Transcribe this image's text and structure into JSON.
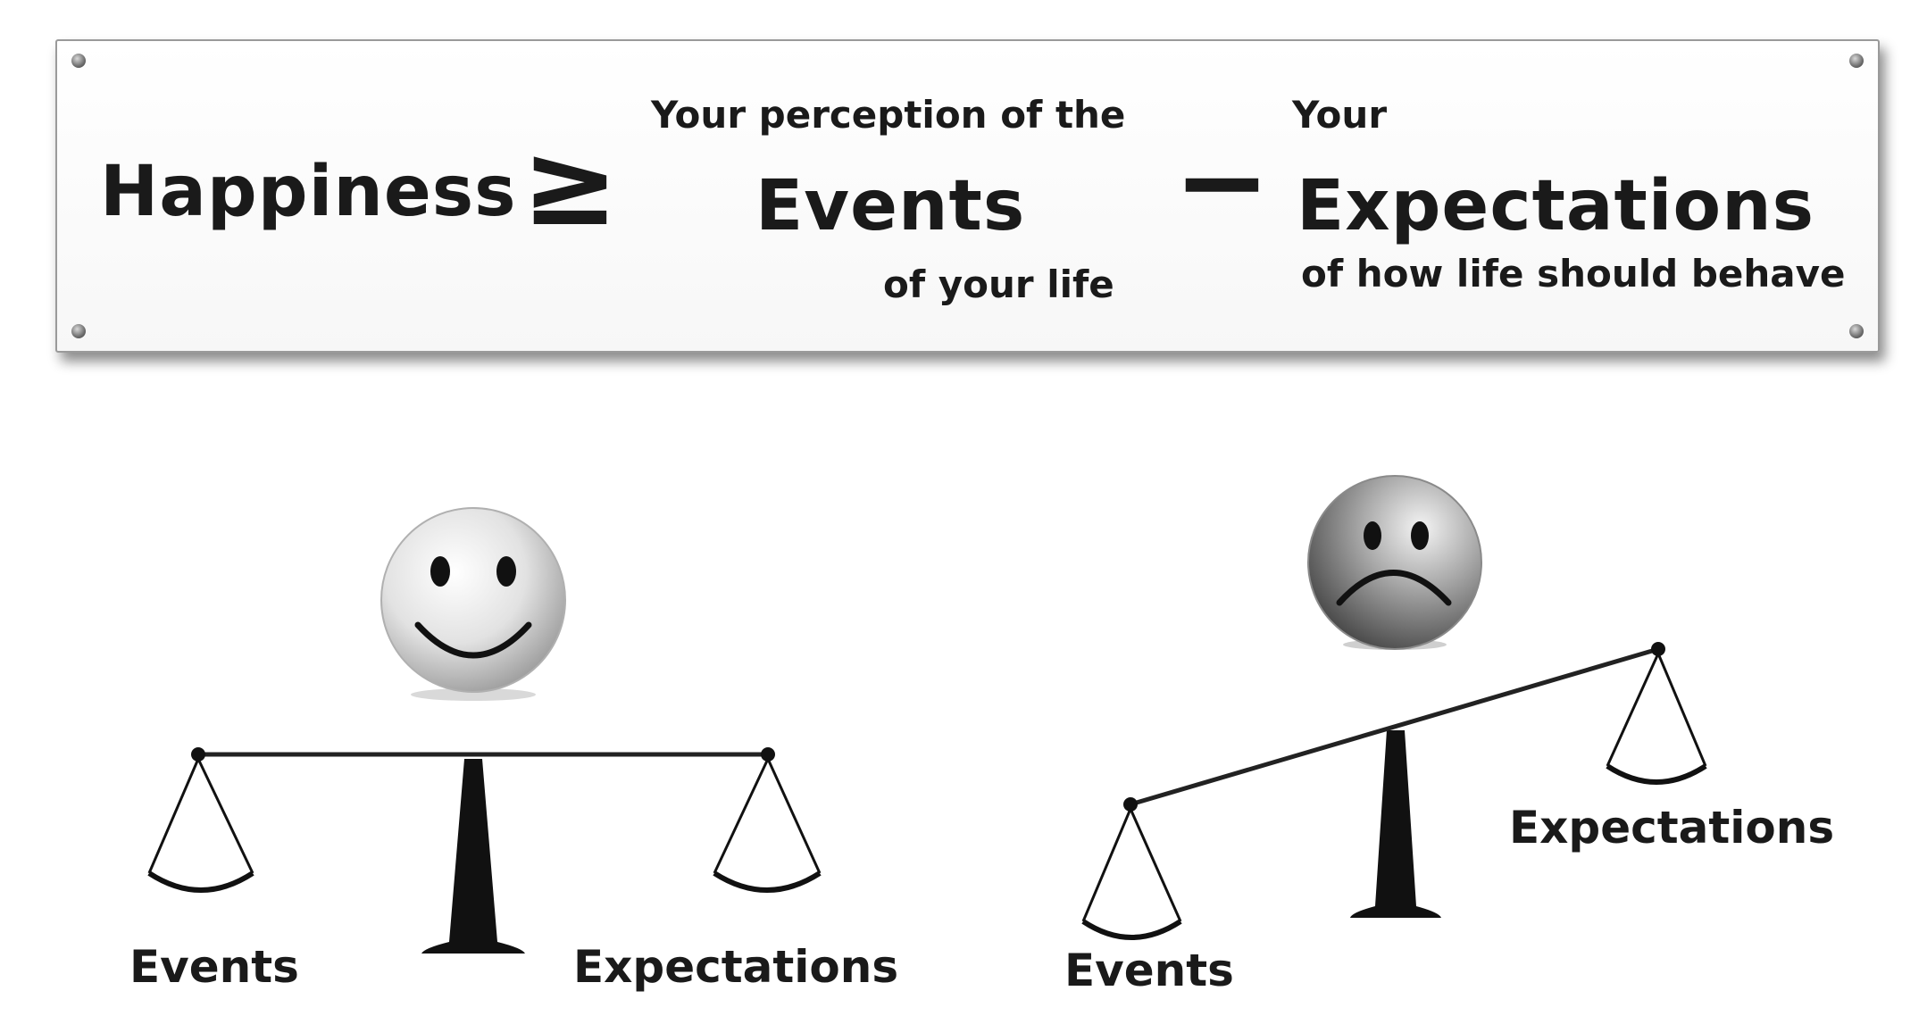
{
  "formula": {
    "happiness": "Happiness",
    "operator_ge": "≥",
    "events_prefix": "Your perception of the",
    "events_word": "Events",
    "events_suffix": "of your life",
    "operator_minus": "−",
    "expectations_prefix": "Your",
    "expectations_word": "Expectations",
    "expectations_suffix": "of how life should behave"
  },
  "balanced_scale": {
    "face": "smiley-face-icon",
    "left_label": "Events",
    "right_label": "Expectations"
  },
  "tilted_scale": {
    "face": "sad-face-icon",
    "left_label": "Events",
    "right_label": "Expectations"
  }
}
